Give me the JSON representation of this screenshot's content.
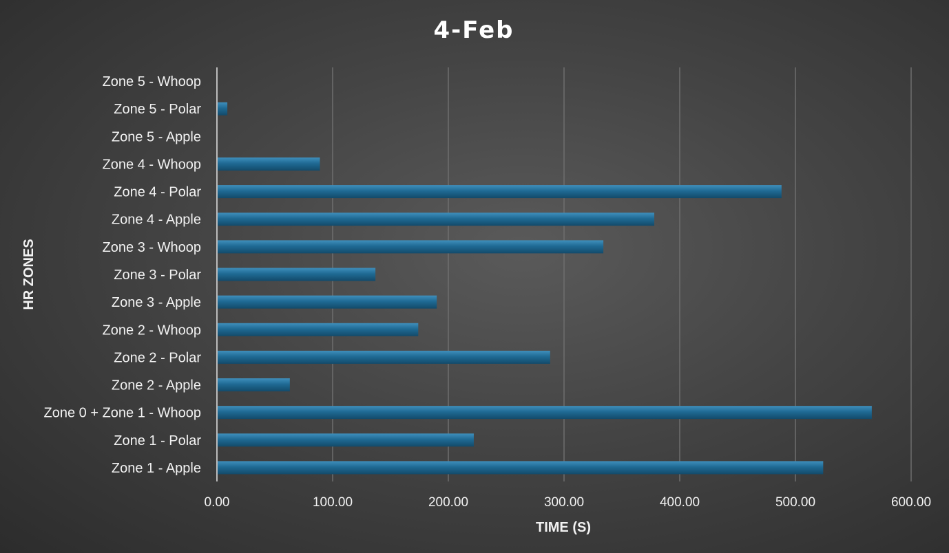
{
  "chart_data": {
    "type": "bar",
    "orientation": "horizontal",
    "title": "4-Feb",
    "xlabel": "TIME (S)",
    "ylabel": "HR ZONES",
    "xlim": [
      0,
      600
    ],
    "xticks": [
      "0.00",
      "100.00",
      "200.00",
      "300.00",
      "400.00",
      "500.00",
      "600.00"
    ],
    "grid": true,
    "legend": "none",
    "bar_color": "#1f6a94",
    "categories": [
      "Zone 1 - Apple",
      "Zone 1 - Polar",
      "Zone 0 + Zone 1 - Whoop",
      "Zone 2 - Apple",
      "Zone 2 - Polar",
      "Zone 2 - Whoop",
      "Zone 3 - Apple",
      "Zone 3 - Polar",
      "Zone 3 - Whoop",
      "Zone 4 - Apple",
      "Zone 4 - Polar",
      "Zone 4 - Whoop",
      "Zone 5 - Apple",
      "Zone 5 - Polar",
      "Zone 5 - Whoop"
    ],
    "values": [
      524,
      222,
      566,
      63,
      288,
      174,
      190,
      137,
      334,
      378,
      488,
      89,
      0,
      9,
      0
    ]
  }
}
